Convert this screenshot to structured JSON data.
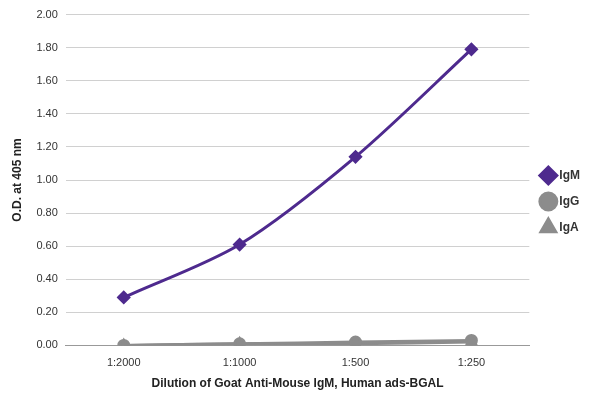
{
  "chart_data": {
    "type": "line",
    "x_label": "Dilution of Goat Anti-Mouse IgM, Human ads-BGAL",
    "y_label": "O.D. at 405 nm",
    "categories": [
      "1:2000",
      "1:1000",
      "1:500",
      "1:250"
    ],
    "series": [
      {
        "name": "IgM",
        "color": "#4e2a8e",
        "marker": "diamond",
        "values": [
          0.29,
          0.61,
          1.14,
          1.79
        ]
      },
      {
        "name": "IgG",
        "color": "#8c8c8c",
        "marker": "circle",
        "values": [
          0.0,
          0.01,
          0.02,
          0.03
        ]
      },
      {
        "name": "IgA",
        "color": "#8c8c8c",
        "marker": "triangle",
        "values": [
          0.0,
          0.01,
          0.01,
          0.02
        ]
      }
    ],
    "ylim": [
      0,
      2
    ],
    "yticks": [
      {
        "value": 0,
        "label": "0.00"
      },
      {
        "value": 0.2,
        "label": "0.20"
      },
      {
        "value": 0.4,
        "label": "0.40"
      },
      {
        "value": 0.6,
        "label": "0.60"
      },
      {
        "value": 0.8,
        "label": "0.80"
      },
      {
        "value": 1.0,
        "label": "1.00"
      },
      {
        "value": 1.2,
        "label": "1.20"
      },
      {
        "value": 1.4,
        "label": "1.40"
      },
      {
        "value": 1.6,
        "label": "1.60"
      },
      {
        "value": 1.8,
        "label": "1.80"
      },
      {
        "value": 2.0,
        "label": "2.00"
      }
    ],
    "grid": "y",
    "legend": "right"
  }
}
